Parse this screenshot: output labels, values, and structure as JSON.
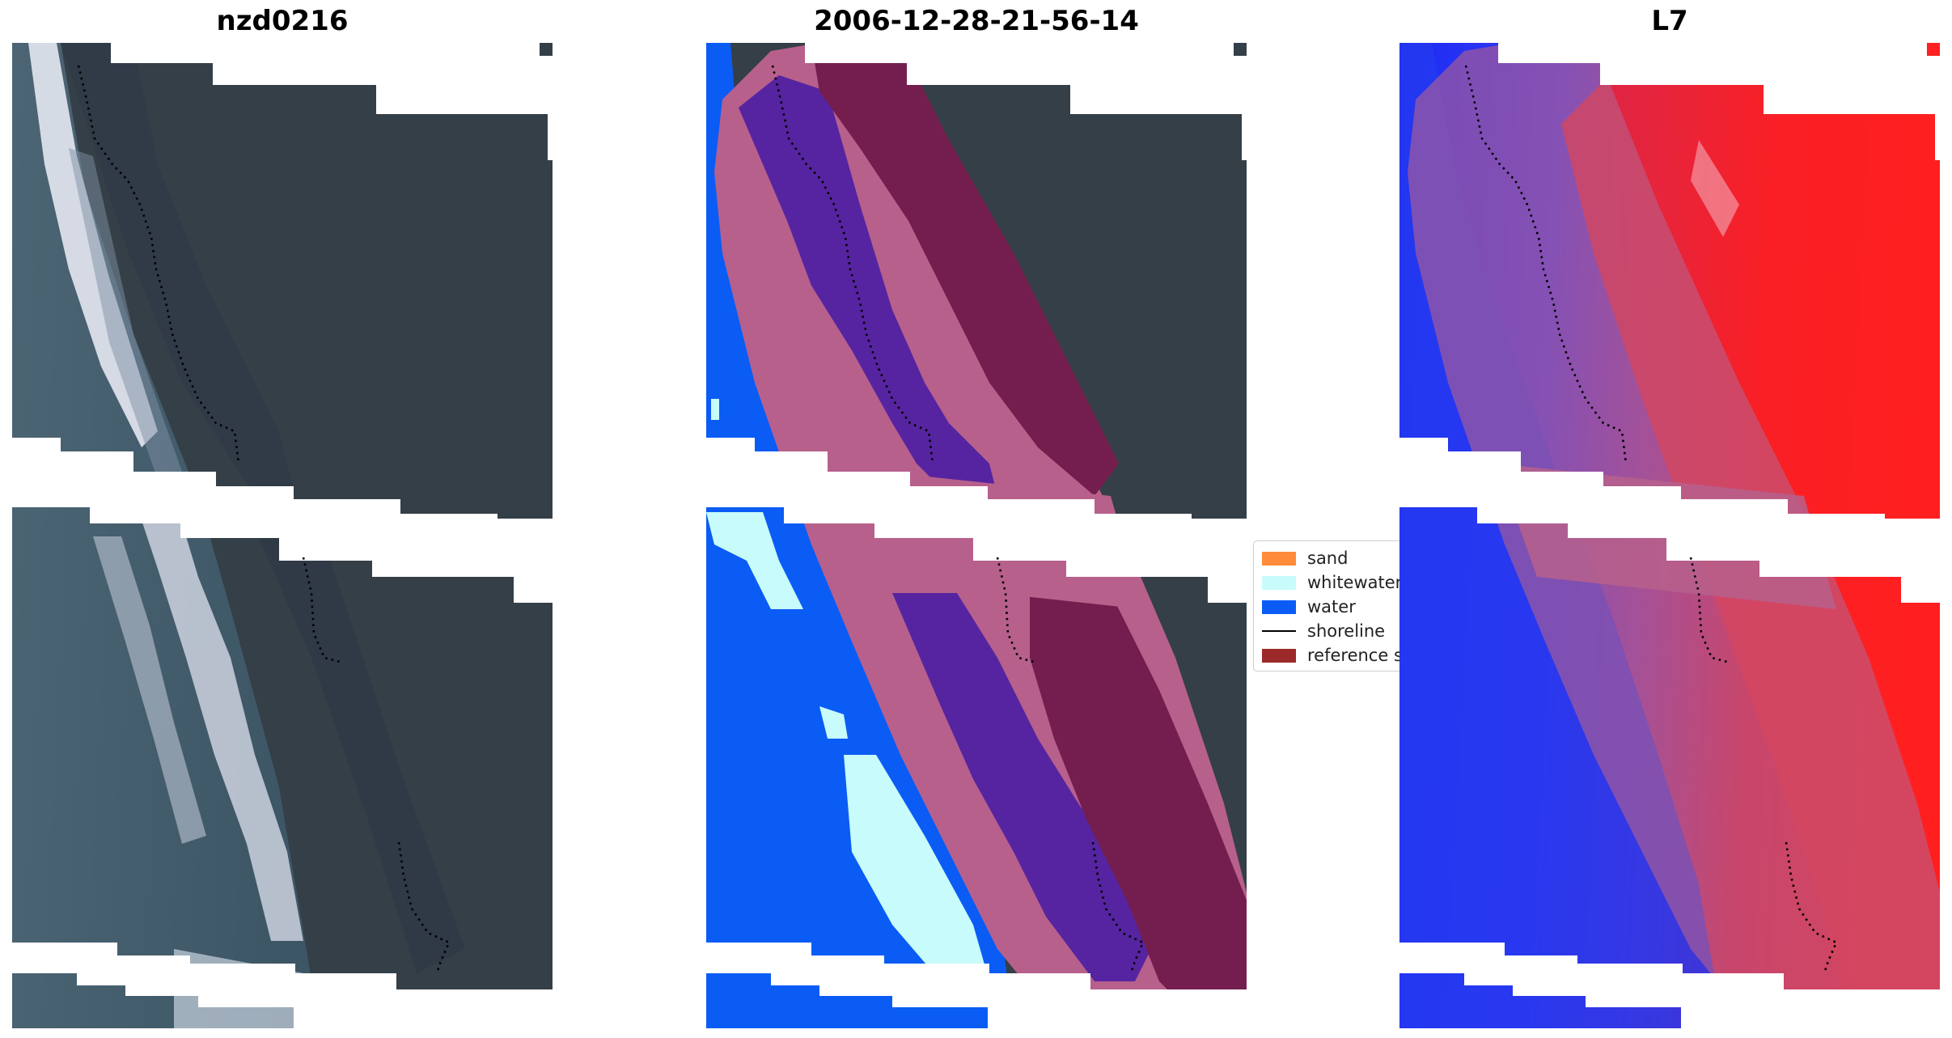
{
  "panels": [
    {
      "title": "nzd0216",
      "kind": "rgb-image"
    },
    {
      "title": "2006-12-28-21-56-14",
      "kind": "classified-image"
    },
    {
      "title": "L7",
      "kind": "mndwi-image"
    }
  ],
  "legend": {
    "items": [
      {
        "label": "sand",
        "color": "#ff8c3a"
      },
      {
        "label": "whitewater",
        "color": "#c8fbfb"
      },
      {
        "label": "water",
        "color": "#0a5cf5"
      },
      {
        "label": "shoreline",
        "color": "#000000",
        "style": "line"
      },
      {
        "label": "reference shoreline buffer",
        "color": "#9c2a2a"
      }
    ]
  },
  "colors": {
    "land_dark": "#353f47",
    "surf_white": "#e4e8f1",
    "sea_blue_grey": "#3f5664",
    "buffer_pink": "#b7608c",
    "buffer_maroon": "#741e4f",
    "buffer_purple": "#5624a0",
    "water_blue": "#0a5cf5",
    "index_red": "#ff1a1a",
    "index_blue": "#1a2cf5"
  }
}
